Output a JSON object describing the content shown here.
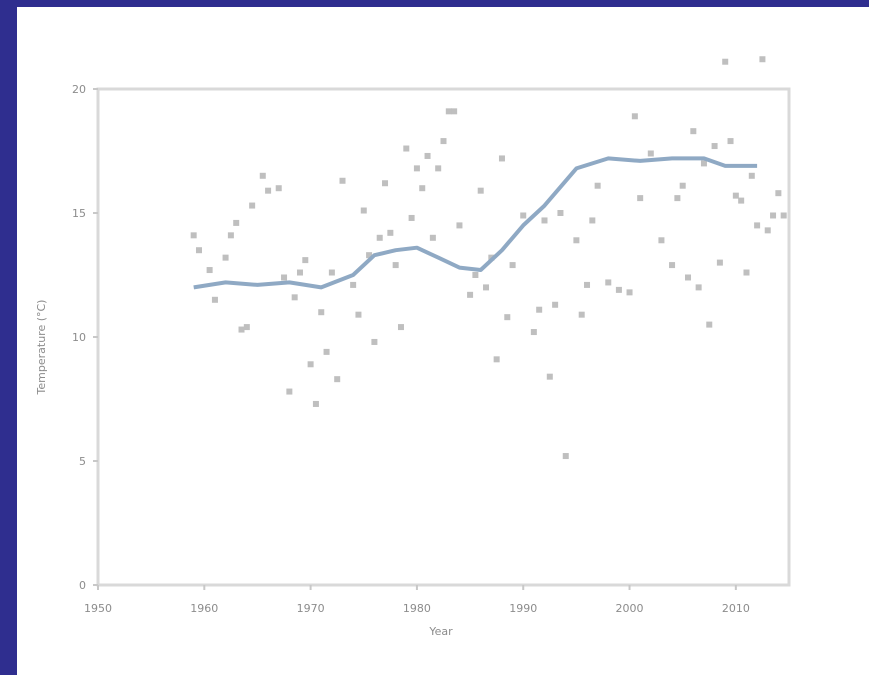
{
  "chart_data": {
    "type": "scatter",
    "title": "",
    "xlabel": "Year",
    "ylabel": "Temperature (°C)",
    "xlim": [
      1950,
      2015
    ],
    "ylim": [
      0,
      20
    ],
    "x_ticks": [
      1950,
      1960,
      1970,
      1980,
      1990,
      2000,
      2010
    ],
    "y_ticks": [
      0,
      5,
      10,
      15,
      20
    ],
    "legend_marker": "",
    "grid": false,
    "series": [
      {
        "kind": "points",
        "color": "#bfbfbf",
        "points": [
          [
            1959,
            14.1
          ],
          [
            1959.5,
            13.5
          ],
          [
            1960.5,
            12.7
          ],
          [
            1961,
            11.5
          ],
          [
            1962,
            13.2
          ],
          [
            1962.5,
            14.1
          ],
          [
            1963,
            14.6
          ],
          [
            1963.5,
            10.3
          ],
          [
            1964,
            10.4
          ],
          [
            1964.5,
            15.3
          ],
          [
            1965.5,
            16.5
          ],
          [
            1966,
            15.9
          ],
          [
            1967,
            16.0
          ],
          [
            1967.5,
            12.4
          ],
          [
            1968,
            7.8
          ],
          [
            1968.5,
            11.6
          ],
          [
            1969,
            12.6
          ],
          [
            1969.5,
            13.1
          ],
          [
            1970,
            8.9
          ],
          [
            1970.5,
            7.3
          ],
          [
            1971,
            11.0
          ],
          [
            1971.5,
            9.4
          ],
          [
            1972,
            12.6
          ],
          [
            1972.5,
            8.3
          ],
          [
            1973,
            16.3
          ],
          [
            1974,
            12.1
          ],
          [
            1974.5,
            10.9
          ],
          [
            1975,
            15.1
          ],
          [
            1975.5,
            13.3
          ],
          [
            1976,
            9.8
          ],
          [
            1976.5,
            14.0
          ],
          [
            1977,
            16.2
          ],
          [
            1977.5,
            14.2
          ],
          [
            1978,
            12.9
          ],
          [
            1978.5,
            10.4
          ],
          [
            1979,
            17.6
          ],
          [
            1979.5,
            14.8
          ],
          [
            1980,
            16.8
          ],
          [
            1980.5,
            16.0
          ],
          [
            1981,
            17.3
          ],
          [
            1981.5,
            14.0
          ],
          [
            1982,
            16.8
          ],
          [
            1982.5,
            17.9
          ],
          [
            1983,
            19.1
          ],
          [
            1983.5,
            19.1
          ],
          [
            1984,
            14.5
          ],
          [
            1985,
            11.7
          ],
          [
            1985.5,
            12.5
          ],
          [
            1986,
            15.9
          ],
          [
            1986.5,
            12.0
          ],
          [
            1987,
            13.2
          ],
          [
            1987.5,
            9.1
          ],
          [
            1988,
            17.2
          ],
          [
            1988.5,
            10.8
          ],
          [
            1989,
            12.9
          ],
          [
            1990,
            14.9
          ],
          [
            1991,
            10.2
          ],
          [
            1991.5,
            11.1
          ],
          [
            1992,
            14.7
          ],
          [
            1992.5,
            8.4
          ],
          [
            1993,
            11.3
          ],
          [
            1993.5,
            15.0
          ],
          [
            1994,
            5.2
          ],
          [
            1995,
            13.9
          ],
          [
            1995.5,
            10.9
          ],
          [
            1996,
            12.1
          ],
          [
            1996.5,
            14.7
          ],
          [
            1997,
            16.1
          ],
          [
            1998,
            12.2
          ],
          [
            1999,
            11.9
          ],
          [
            2000,
            11.8
          ],
          [
            2000.5,
            18.9
          ],
          [
            2001,
            15.6
          ],
          [
            2002,
            17.4
          ],
          [
            2003,
            13.9
          ],
          [
            2004,
            12.9
          ],
          [
            2004.5,
            15.6
          ],
          [
            2005,
            16.1
          ],
          [
            2005.5,
            12.4
          ],
          [
            2006,
            18.3
          ],
          [
            2006.5,
            12.0
          ],
          [
            2007,
            17.0
          ],
          [
            2007.5,
            10.5
          ],
          [
            2008,
            17.7
          ],
          [
            2008.5,
            13.0
          ],
          [
            2009,
            21.1
          ],
          [
            2009.5,
            17.9
          ],
          [
            2010,
            15.7
          ],
          [
            2010.5,
            15.5
          ],
          [
            2011,
            12.6
          ],
          [
            2011.5,
            16.5
          ],
          [
            2012,
            14.5
          ],
          [
            2012.5,
            21.2
          ],
          [
            2013,
            14.3
          ],
          [
            2013.5,
            14.9
          ],
          [
            2014,
            15.8
          ],
          [
            2014.5,
            14.9
          ]
        ]
      },
      {
        "kind": "line",
        "color": "#8fa9c4",
        "points": [
          [
            1959,
            12.0
          ],
          [
            1962,
            12.2
          ],
          [
            1965,
            12.1
          ],
          [
            1968,
            12.2
          ],
          [
            1971,
            12.0
          ],
          [
            1974,
            12.5
          ],
          [
            1976,
            13.3
          ],
          [
            1978,
            13.5
          ],
          [
            1980,
            13.6
          ],
          [
            1982,
            13.2
          ],
          [
            1984,
            12.8
          ],
          [
            1986,
            12.7
          ],
          [
            1988,
            13.5
          ],
          [
            1990,
            14.5
          ],
          [
            1992,
            15.3
          ],
          [
            1995,
            16.8
          ],
          [
            1998,
            17.2
          ],
          [
            2001,
            17.1
          ],
          [
            2004,
            17.2
          ],
          [
            2007,
            17.2
          ],
          [
            2009,
            16.9
          ],
          [
            2012,
            16.9
          ]
        ]
      }
    ]
  }
}
